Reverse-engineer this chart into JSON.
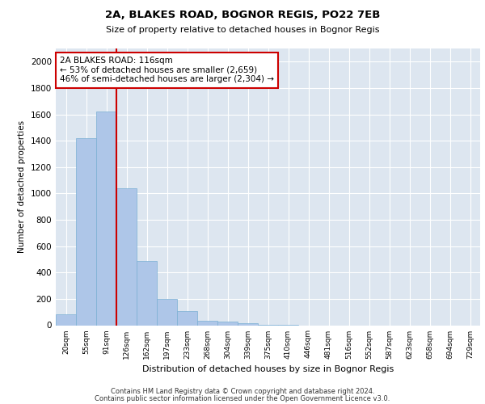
{
  "title1": "2A, BLAKES ROAD, BOGNOR REGIS, PO22 7EB",
  "title2": "Size of property relative to detached houses in Bognor Regis",
  "xlabel": "Distribution of detached houses by size in Bognor Regis",
  "ylabel": "Number of detached properties",
  "bins": [
    "20sqm",
    "55sqm",
    "91sqm",
    "126sqm",
    "162sqm",
    "197sqm",
    "233sqm",
    "268sqm",
    "304sqm",
    "339sqm",
    "375sqm",
    "410sqm",
    "446sqm",
    "481sqm",
    "516sqm",
    "552sqm",
    "587sqm",
    "623sqm",
    "658sqm",
    "694sqm",
    "729sqm"
  ],
  "values": [
    80,
    1420,
    1620,
    1040,
    490,
    200,
    105,
    35,
    25,
    15,
    5,
    2,
    0,
    0,
    0,
    0,
    0,
    0,
    0,
    0,
    0
  ],
  "bar_color": "#aec6e8",
  "bar_edge_color": "#7aafd4",
  "vline_color": "#cc0000",
  "annotation_text": "2A BLAKES ROAD: 116sqm\n← 53% of detached houses are smaller (2,659)\n46% of semi-detached houses are larger (2,304) →",
  "annotation_box_color": "#ffffff",
  "annotation_box_edge": "#cc0000",
  "ylim": [
    0,
    2100
  ],
  "yticks": [
    0,
    200,
    400,
    600,
    800,
    1000,
    1200,
    1400,
    1600,
    1800,
    2000
  ],
  "background_color": "#dde6f0",
  "grid_color": "#ffffff",
  "footer1": "Contains HM Land Registry data © Crown copyright and database right 2024.",
  "footer2": "Contains public sector information licensed under the Open Government Licence v3.0."
}
